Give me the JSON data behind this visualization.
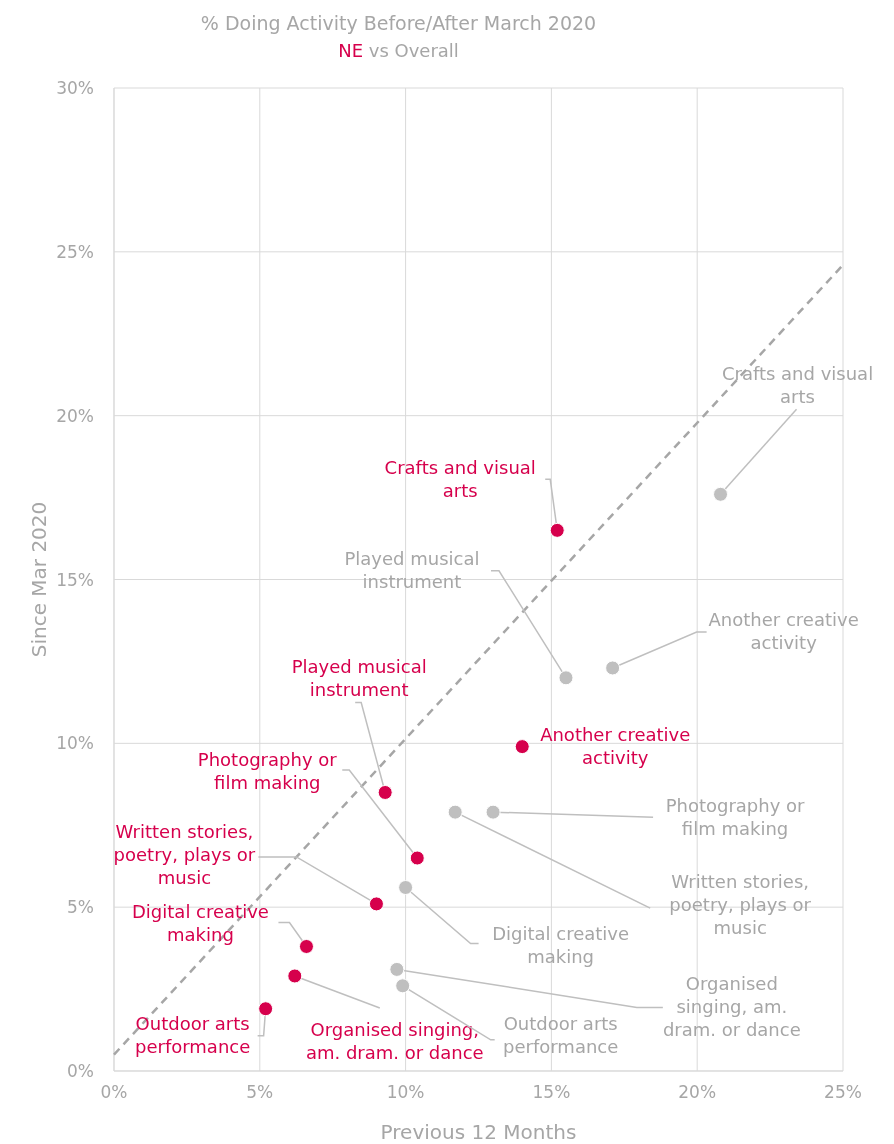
{
  "chart_data": {
    "type": "scatter",
    "title": "% Doing Activity Before/After March 2020",
    "subtitle": "NE vs Overall",
    "xlabel": "Previous 12 Months",
    "ylabel": "Since Mar 2020",
    "xlim": [
      0,
      25
    ],
    "ylim": [
      0,
      30
    ],
    "xticks": [
      {
        "value": 0,
        "label": "0%"
      },
      {
        "value": 5,
        "label": "5%"
      },
      {
        "value": 10,
        "label": "10%"
      },
      {
        "value": 15,
        "label": "15%"
      },
      {
        "value": 20,
        "label": "20%"
      },
      {
        "value": 25,
        "label": "25%"
      }
    ],
    "yticks": [
      {
        "value": 0,
        "label": "0%"
      },
      {
        "value": 5,
        "label": "5%"
      },
      {
        "value": 10,
        "label": "10%"
      },
      {
        "value": 15,
        "label": "15%"
      },
      {
        "value": 20,
        "label": "20%"
      },
      {
        "value": 25,
        "label": "25%"
      },
      {
        "value": 30,
        "label": "30%"
      }
    ],
    "grid": true,
    "marker": "circle",
    "series": [
      {
        "color": "#d6004c",
        "x": [
          15.2,
          14.0,
          9.3,
          10.4,
          9.0,
          6.6,
          6.2,
          5.2
        ],
        "values": [
          16.5,
          9.9,
          8.5,
          6.5,
          5.1,
          3.8,
          2.9,
          1.9
        ]
      },
      {
        "color": "#bfbfbf",
        "x": [
          20.8,
          17.1,
          15.5,
          13.0,
          11.7,
          10.0,
          9.7,
          9.9
        ],
        "values": [
          17.6,
          12.3,
          12.0,
          7.9,
          7.9,
          5.6,
          3.1,
          2.6
        ]
      },
      {
        "type": "line",
        "color": "#a6a6a6",
        "line_style": "dashed",
        "marker": "none",
        "x": [
          0,
          25
        ],
        "values": [
          0.5,
          24.6
        ]
      }
    ],
    "annotations": [
      {
        "text": "Crafts and visual arts",
        "x": 15.2,
        "y": 16.5
      },
      {
        "text": "Another creative activity",
        "x": 14.0,
        "y": 9.9
      },
      {
        "text": "Played musical instrument",
        "x": 9.3,
        "y": 8.5
      },
      {
        "text": "Photography or film making",
        "x": 10.4,
        "y": 6.5
      },
      {
        "text": "Written stories, poetry, plays or music",
        "x": 9.0,
        "y": 5.1
      },
      {
        "text": "Digital creative making",
        "x": 6.6,
        "y": 3.8
      },
      {
        "text": "Organised singing, am. dram. or dance",
        "x": 6.2,
        "y": 2.9
      },
      {
        "text": "Outdoor arts performance",
        "x": 5.2,
        "y": 1.9
      },
      {
        "text": "Crafts and visual arts",
        "x": 20.8,
        "y": 17.6
      },
      {
        "text": "Another creative activity",
        "x": 17.1,
        "y": 12.3
      },
      {
        "text": "Played musical instrument",
        "x": 15.5,
        "y": 12.0
      },
      {
        "text": "Photography or film making",
        "x": 13.0,
        "y": 7.9
      },
      {
        "text": "Written stories, poetry, plays or music",
        "x": 11.7,
        "y": 7.9
      },
      {
        "text": "Digital creative making",
        "x": 10.0,
        "y": 5.6
      },
      {
        "text": "Organised singing, am. dram. or dance",
        "x": 9.7,
        "y": 3.1
      },
      {
        "text": "Outdoor arts performance",
        "x": 9.9,
        "y": 2.6
      }
    ]
  }
}
